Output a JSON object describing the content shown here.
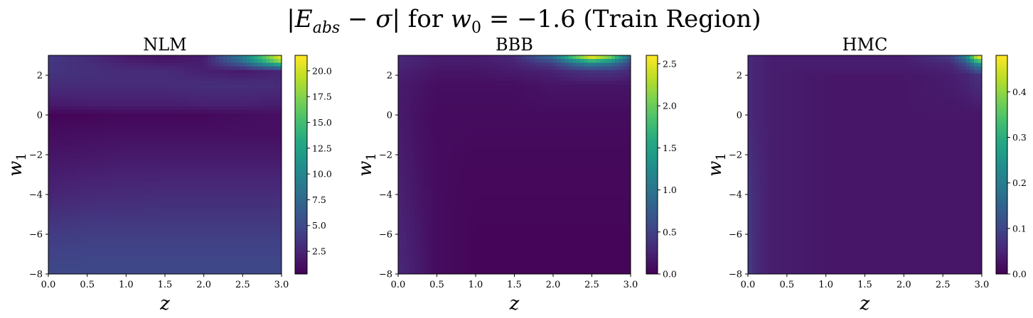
{
  "figure": {
    "suptitle": "|E_abs − σ| for w_0 = −1.6 (Train Region)",
    "suptitle_parts": {
      "open": "|",
      "e": "E",
      "e_sub": "abs",
      "minus_sigma": " − σ| ",
      "for_text": "for ",
      "w": "w",
      "w_sub": "0",
      "equals_value": " = −1.6 ",
      "region": "(Train Region)"
    },
    "colormap": "viridis"
  },
  "chart_data": [
    {
      "type": "heatmap",
      "title": "NLM",
      "xlabel": "z",
      "ylabel": "w_1",
      "ylabel_parts": {
        "main": "w",
        "sub": "1"
      },
      "xlim": [
        0.0,
        3.0
      ],
      "ylim": [
        -8,
        3
      ],
      "xticks": [
        "0.0",
        "0.5",
        "1.0",
        "1.5",
        "2.0",
        "2.5",
        "3.0"
      ],
      "yticks": [
        "−8",
        "−6",
        "−4",
        "−2",
        "0",
        "2"
      ],
      "ytick_values": [
        -8,
        -6,
        -4,
        -2,
        0,
        2
      ],
      "colorbar": {
        "min": 0.3,
        "max": 21.5,
        "ticks": [
          "2.5",
          "5.0",
          "7.5",
          "10.0",
          "12.5",
          "15.0",
          "17.5",
          "20.0"
        ],
        "tick_values": [
          2.5,
          5.0,
          7.5,
          10.0,
          12.5,
          15.0,
          17.5,
          20.0
        ]
      },
      "z_axis": [
        0.0,
        0.5,
        1.0,
        1.5,
        2.0,
        2.5,
        3.0
      ],
      "w1_axis": [
        2.8,
        2.2,
        1.5,
        0.5,
        0.0,
        -1.0,
        -2.0,
        -4.0,
        -6.0,
        -8.0
      ],
      "values": [
        [
          3.8,
          3.0,
          2.0,
          1.5,
          2.0,
          9.0,
          21.0
        ],
        [
          3.6,
          3.2,
          3.0,
          3.0,
          2.2,
          1.8,
          2.5
        ],
        [
          3.0,
          3.0,
          3.0,
          3.0,
          3.2,
          3.2,
          3.0
        ],
        [
          1.8,
          2.0,
          2.0,
          2.0,
          2.2,
          2.2,
          2.0
        ],
        [
          0.6,
          0.6,
          0.8,
          0.8,
          0.8,
          1.0,
          1.2
        ],
        [
          1.0,
          1.2,
          1.2,
          1.2,
          1.2,
          1.2,
          1.2
        ],
        [
          1.5,
          1.6,
          1.8,
          1.8,
          1.8,
          1.8,
          1.8
        ],
        [
          2.5,
          2.8,
          2.9,
          3.0,
          3.0,
          3.0,
          3.0
        ],
        [
          4.0,
          4.2,
          4.2,
          4.2,
          4.2,
          4.2,
          4.2
        ],
        [
          5.0,
          5.0,
          5.0,
          5.0,
          5.0,
          5.0,
          5.0
        ]
      ]
    },
    {
      "type": "heatmap",
      "title": "BBB",
      "xlabel": "z",
      "ylabel": "w_1",
      "ylabel_parts": {
        "main": "w",
        "sub": "1"
      },
      "xlim": [
        0.0,
        3.0
      ],
      "ylim": [
        -8,
        3
      ],
      "xticks": [
        "0.0",
        "0.5",
        "1.0",
        "1.5",
        "2.0",
        "2.5",
        "3.0"
      ],
      "yticks": [
        "−8",
        "−6",
        "−4",
        "−2",
        "0",
        "2"
      ],
      "ytick_values": [
        -8,
        -6,
        -4,
        -2,
        0,
        2
      ],
      "colorbar": {
        "min": 0.0,
        "max": 2.6,
        "ticks": [
          "0.0",
          "0.5",
          "1.0",
          "1.5",
          "2.0",
          "2.5"
        ],
        "tick_values": [
          0.0,
          0.5,
          1.0,
          1.5,
          2.0,
          2.5
        ]
      },
      "z_axis": [
        0.0,
        0.25,
        0.5,
        1.0,
        1.5,
        2.0,
        2.25,
        2.5,
        2.75,
        3.0
      ],
      "w1_axis": [
        2.9,
        2.6,
        2.2,
        1.5,
        0.0,
        -2.0,
        -4.0,
        -6.0,
        -8.0
      ],
      "values": [
        [
          0.3,
          0.25,
          0.2,
          0.2,
          0.3,
          0.9,
          1.8,
          2.5,
          2.0,
          0.8
        ],
        [
          0.3,
          0.25,
          0.2,
          0.2,
          0.25,
          0.5,
          0.9,
          1.2,
          1.0,
          0.5
        ],
        [
          0.25,
          0.2,
          0.15,
          0.15,
          0.2,
          0.25,
          0.35,
          0.4,
          0.4,
          0.3
        ],
        [
          0.2,
          0.15,
          0.1,
          0.1,
          0.1,
          0.15,
          0.15,
          0.15,
          0.15,
          0.15
        ],
        [
          0.2,
          0.12,
          0.08,
          0.08,
          0.08,
          0.08,
          0.08,
          0.08,
          0.08,
          0.08
        ],
        [
          0.22,
          0.14,
          0.08,
          0.06,
          0.06,
          0.06,
          0.06,
          0.06,
          0.06,
          0.06
        ],
        [
          0.25,
          0.16,
          0.08,
          0.05,
          0.05,
          0.05,
          0.05,
          0.05,
          0.05,
          0.05
        ],
        [
          0.28,
          0.18,
          0.08,
          0.04,
          0.04,
          0.04,
          0.04,
          0.04,
          0.04,
          0.04
        ],
        [
          0.3,
          0.2,
          0.08,
          0.04,
          0.04,
          0.04,
          0.04,
          0.04,
          0.04,
          0.04
        ]
      ]
    },
    {
      "type": "heatmap",
      "title": "HMC",
      "xlabel": "z",
      "ylabel": "w_1",
      "ylabel_parts": {
        "main": "w",
        "sub": "1"
      },
      "xlim": [
        0.0,
        3.0
      ],
      "ylim": [
        -8,
        3
      ],
      "xticks": [
        "0.0",
        "0.5",
        "1.0",
        "1.5",
        "2.0",
        "2.5",
        "3.0"
      ],
      "yticks": [
        "−8",
        "−6",
        "−4",
        "−2",
        "0",
        "2"
      ],
      "ytick_values": [
        -8,
        -6,
        -4,
        -2,
        0,
        2
      ],
      "colorbar": {
        "min": 0.0,
        "max": 0.48,
        "ticks": [
          "0.0",
          "0.1",
          "0.2",
          "0.3",
          "0.4"
        ],
        "tick_values": [
          0.0,
          0.1,
          0.2,
          0.3,
          0.4
        ]
      },
      "z_axis": [
        0.0,
        0.1,
        0.3,
        1.0,
        2.0,
        2.6,
        2.8,
        2.95
      ],
      "w1_axis": [
        2.9,
        2.5,
        2.0,
        0.0,
        -4.0,
        -8.0
      ],
      "values": [
        [
          0.06,
          0.05,
          0.04,
          0.04,
          0.04,
          0.08,
          0.2,
          0.46
        ],
        [
          0.06,
          0.05,
          0.04,
          0.04,
          0.04,
          0.05,
          0.1,
          0.2
        ],
        [
          0.06,
          0.05,
          0.04,
          0.03,
          0.03,
          0.04,
          0.05,
          0.07
        ],
        [
          0.06,
          0.05,
          0.04,
          0.03,
          0.03,
          0.03,
          0.03,
          0.03
        ],
        [
          0.08,
          0.06,
          0.04,
          0.03,
          0.03,
          0.03,
          0.03,
          0.03
        ],
        [
          0.09,
          0.06,
          0.04,
          0.03,
          0.03,
          0.03,
          0.03,
          0.03
        ]
      ]
    }
  ]
}
